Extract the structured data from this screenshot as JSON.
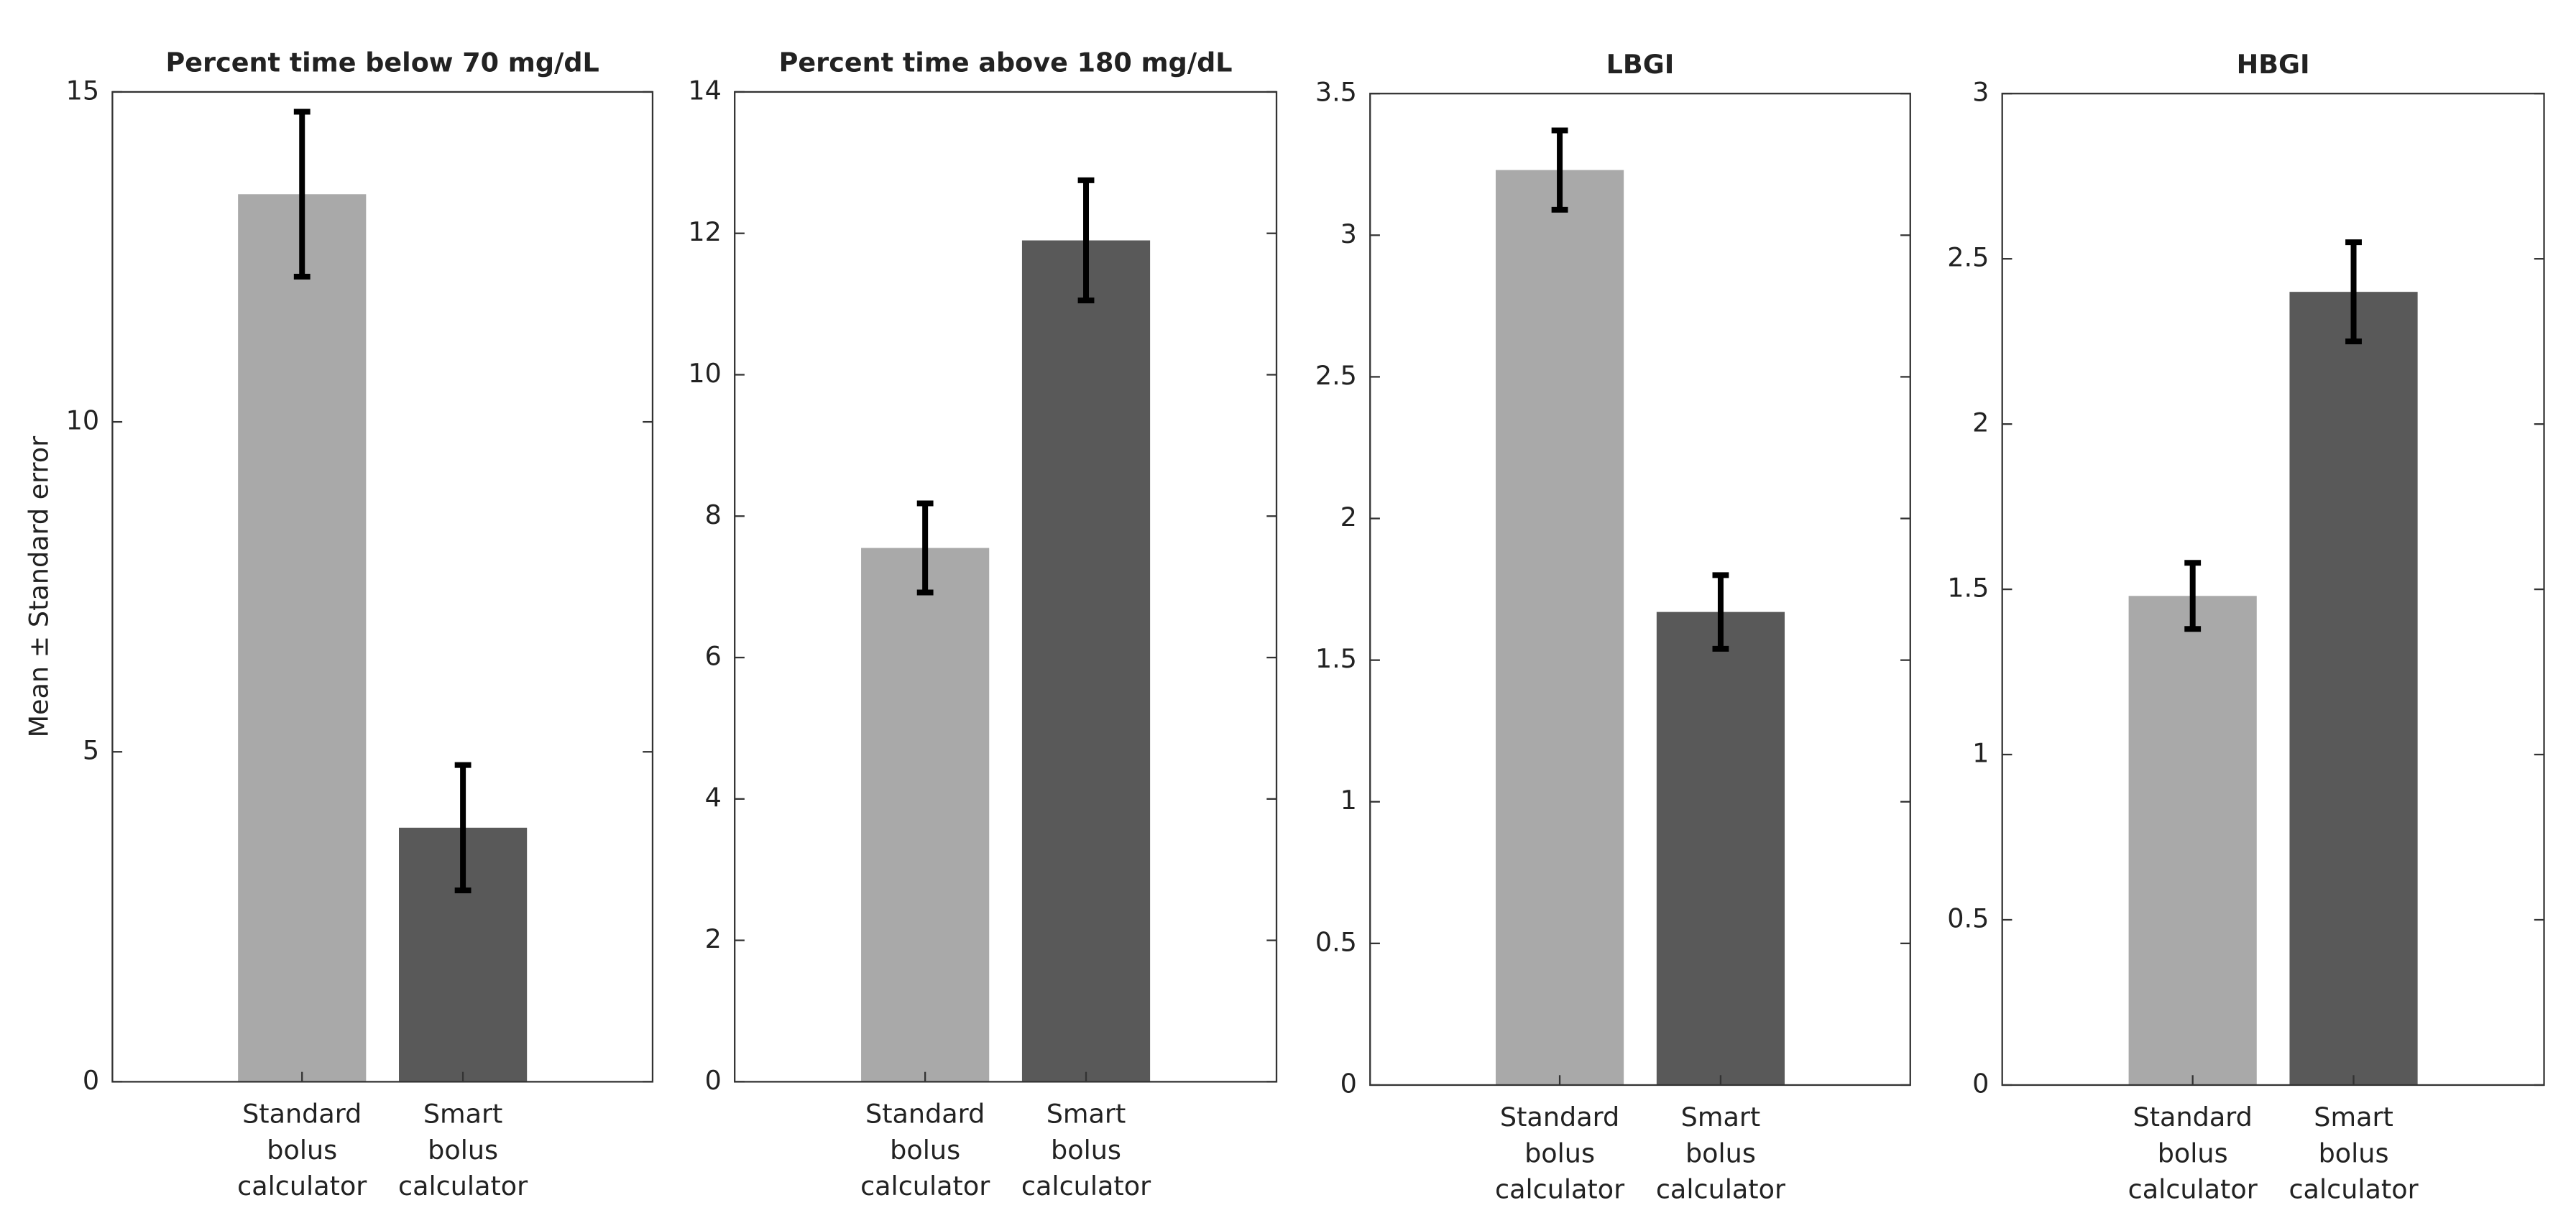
{
  "chart_data": [
    {
      "type": "bar",
      "title": "Percent time below 70 mg/dL",
      "y_label": "Mean ± Standard error",
      "categories": [
        "Standard bolus calculator",
        "Smart bolus calculator"
      ],
      "values": [
        13.45,
        3.85
      ],
      "errors": [
        1.25,
        0.95
      ],
      "colors": [
        "#a9a9a9",
        "#595959"
      ],
      "ylim": [
        0,
        15
      ],
      "yticks": [
        0,
        5,
        10,
        15
      ]
    },
    {
      "type": "bar",
      "title": "Percent time above 180 mg/dL",
      "categories": [
        "Standard bolus calculator",
        "Smart bolus calculator"
      ],
      "values": [
        7.55,
        11.9
      ],
      "errors": [
        0.63,
        0.85
      ],
      "colors": [
        "#a9a9a9",
        "#595959"
      ],
      "ylim": [
        0,
        14
      ],
      "yticks": [
        0,
        2,
        4,
        6,
        8,
        10,
        12,
        14
      ]
    },
    {
      "type": "bar",
      "title": "LBGI",
      "categories": [
        "Standard bolus calculator",
        "Smart bolus calculator"
      ],
      "values": [
        3.23,
        1.67
      ],
      "errors": [
        0.14,
        0.13
      ],
      "colors": [
        "#a9a9a9",
        "#595959"
      ],
      "ylim": [
        0,
        3.5
      ],
      "yticks": [
        0,
        0.5,
        1,
        1.5,
        2,
        2.5,
        3,
        3.5
      ]
    },
    {
      "type": "bar",
      "title": "HBGI",
      "categories": [
        "Standard bolus calculator",
        "Smart bolus calculator"
      ],
      "values": [
        1.48,
        2.4
      ],
      "errors": [
        0.1,
        0.15
      ],
      "colors": [
        "#a9a9a9",
        "#595959"
      ],
      "ylim": [
        0,
        3
      ],
      "yticks": [
        0,
        0.5,
        1,
        1.5,
        2,
        2.5,
        3
      ]
    }
  ]
}
